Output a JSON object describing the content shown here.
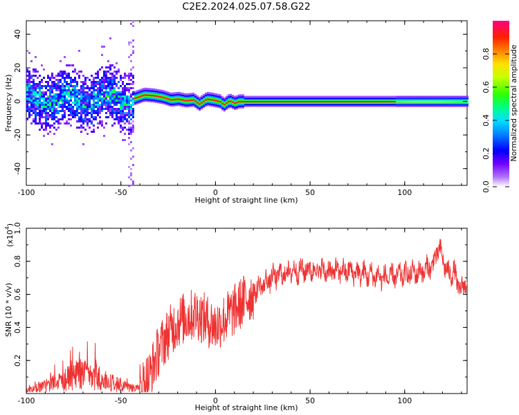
{
  "title": "C2E2.2024.025.07.58.G22",
  "chart_data": [
    {
      "type": "heatmap",
      "name": "spectrogram",
      "xlabel": "Height of straight line (km)",
      "ylabel": "Frequency (Hz)",
      "xlim": [
        -100,
        133
      ],
      "ylim": [
        -50,
        48
      ],
      "xticks": [
        -100,
        -50,
        0,
        50,
        100
      ],
      "yticks": [
        -40,
        -20,
        0,
        20,
        40
      ],
      "colorbar": {
        "label": "Normalized spectral amplitude",
        "range": [
          0,
          1
        ],
        "ticks": [
          "0.0",
          "0.2",
          "0.4",
          "0.6",
          "0.8"
        ]
      },
      "features": {
        "scatter_region_km": [
          -100,
          -43
        ],
        "scatter_spread_hz": 12,
        "tracking_start_km": -43,
        "track_freq_hz": [
          [
            -43,
            2
          ],
          [
            -38,
            4
          ],
          [
            -33,
            3.5
          ],
          [
            -28,
            2.5
          ],
          [
            -24,
            1
          ],
          [
            -20,
            1.5
          ],
          [
            -16,
            0.5
          ],
          [
            -12,
            1
          ],
          [
            -9,
            -1.5
          ],
          [
            -5,
            1.5
          ],
          [
            -2,
            1
          ],
          [
            2,
            0
          ],
          [
            4,
            -2
          ],
          [
            7,
            0.5
          ],
          [
            10,
            -1
          ],
          [
            12,
            0
          ],
          [
            20,
            0
          ],
          [
            133,
            0
          ]
        ]
      }
    },
    {
      "type": "line",
      "name": "snr",
      "xlabel": "Height of straight line (km)",
      "ylabel": "SNR (10 * v/v)",
      "yexp": "(x10",
      "yexp_power": "4",
      "ypeak_close": ")",
      "xlim": [
        -100,
        133
      ],
      "ylim": [
        0,
        1.0
      ],
      "xticks": [
        -100,
        -50,
        0,
        50,
        100
      ],
      "yticks": [
        "0.2",
        "0.4",
        "0.6",
        "0.8",
        "1.0"
      ],
      "color": "#ee3333",
      "envelope": [
        [
          -100,
          0.03
        ],
        [
          -90,
          0.08
        ],
        [
          -80,
          0.15
        ],
        [
          -72,
          0.22
        ],
        [
          -65,
          0.2
        ],
        [
          -55,
          0.12
        ],
        [
          -45,
          0.06
        ],
        [
          -40,
          0.05
        ],
        [
          -35,
          0.12
        ],
        [
          -30,
          0.28
        ],
        [
          -25,
          0.38
        ],
        [
          -20,
          0.45
        ],
        [
          -15,
          0.48
        ],
        [
          -10,
          0.5
        ],
        [
          -5,
          0.46
        ],
        [
          0,
          0.42
        ],
        [
          5,
          0.47
        ],
        [
          10,
          0.52
        ],
        [
          15,
          0.58
        ],
        [
          20,
          0.62
        ],
        [
          25,
          0.66
        ],
        [
          30,
          0.7
        ],
        [
          35,
          0.72
        ],
        [
          40,
          0.74
        ],
        [
          50,
          0.75
        ],
        [
          60,
          0.74
        ],
        [
          70,
          0.74
        ],
        [
          80,
          0.72
        ],
        [
          90,
          0.7
        ],
        [
          100,
          0.72
        ],
        [
          110,
          0.74
        ],
        [
          115,
          0.78
        ],
        [
          118,
          0.88
        ],
        [
          120,
          0.82
        ],
        [
          123,
          0.72
        ],
        [
          126,
          0.74
        ],
        [
          128,
          0.66
        ],
        [
          130,
          0.62
        ],
        [
          133,
          0.7
        ]
      ]
    }
  ]
}
